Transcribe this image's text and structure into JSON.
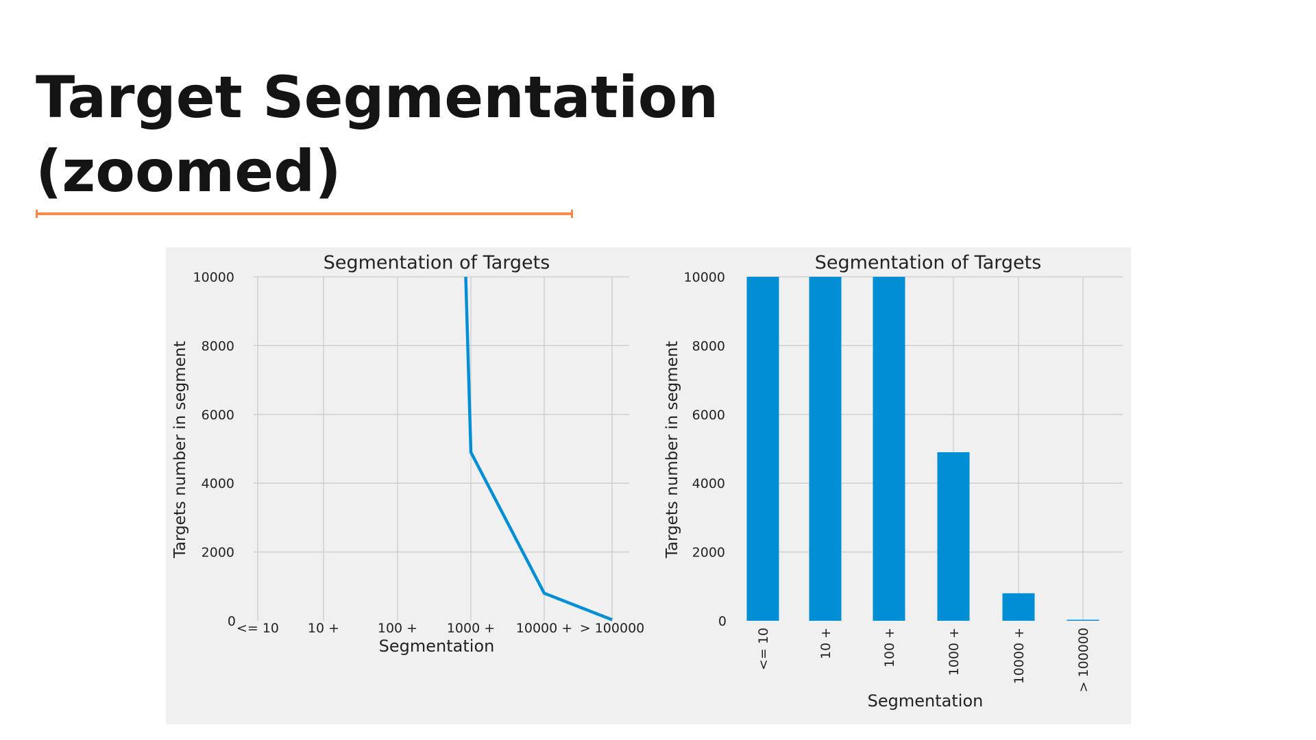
{
  "slide": {
    "title_line1": "Target Segmentation",
    "title_line2": "(zoomed)",
    "accent_color": "#f5894b"
  },
  "chart_data": [
    {
      "type": "line",
      "title": "Segmentation of Targets",
      "xlabel": "Segmentation",
      "ylabel": "Targets number in segment",
      "categories": [
        "<= 10",
        "10 +",
        "100 +",
        "1000 +",
        "10000 +",
        "> 100000"
      ],
      "series": [
        {
          "values": [
            null,
            null,
            null,
            4900,
            800,
            30
          ],
          "color": "#008fd5"
        }
      ],
      "line_entry": {
        "x_category_index": 2.93,
        "y": 10000
      },
      "ylim": [
        0,
        10000
      ],
      "yticks": [
        "0",
        "2000",
        "4000",
        "6000",
        "8000",
        "10000"
      ],
      "grid": true
    },
    {
      "type": "bar",
      "title": "Segmentation of Targets",
      "xlabel": "Segmentation",
      "ylabel": "Targets number in segment",
      "categories": [
        "<= 10",
        "10 +",
        "100 +",
        "1000 +",
        "10000 +",
        "> 100000"
      ],
      "values": [
        10000,
        10000,
        10000,
        4900,
        800,
        30
      ],
      "color": "#008fd5",
      "ylim": [
        0,
        10000
      ],
      "yticks": [
        "0",
        "2000",
        "4000",
        "6000",
        "8000",
        "10000"
      ],
      "grid": true
    }
  ]
}
